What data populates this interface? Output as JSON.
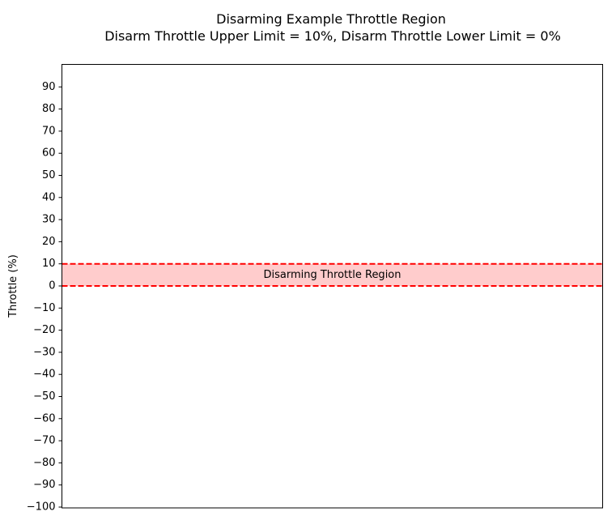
{
  "chart_data": {
    "type": "area",
    "title": "Disarming Example Throttle Region",
    "subtitle": "Disarm Throttle Upper Limit = 10%, Disarm Throttle Lower Limit = 0%",
    "xlabel": "",
    "ylabel": "Throttle (%)",
    "ylim": [
      -100,
      100
    ],
    "yticks": [
      -100,
      -90,
      -80,
      -70,
      -60,
      -50,
      -40,
      -30,
      -20,
      -10,
      0,
      10,
      20,
      30,
      40,
      50,
      60,
      70,
      80,
      90
    ],
    "x_ticks_visible": false,
    "grid": false,
    "region": {
      "label": "Disarming Throttle Region",
      "lower": 0,
      "upper": 10,
      "fill_color": "#ffcccc",
      "line_color": "#ff0000",
      "line_style": "dashed"
    }
  }
}
